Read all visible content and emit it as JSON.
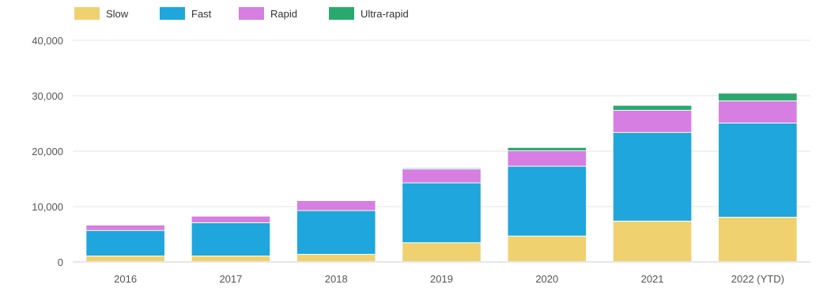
{
  "chart_data": {
    "type": "bar",
    "stacked": true,
    "categories": [
      "2016",
      "2017",
      "2018",
      "2019",
      "2020",
      "2021",
      "2022 (YTD)"
    ],
    "series": [
      {
        "name": "Slow",
        "color": "#f0d170",
        "values": [
          1000,
          1000,
          1300,
          3400,
          4600,
          7300,
          8000
        ]
      },
      {
        "name": "Fast",
        "color": "#1fa6dc",
        "values": [
          4600,
          6000,
          7900,
          10800,
          12600,
          16000,
          17000
        ]
      },
      {
        "name": "Rapid",
        "color": "#d67ee2",
        "values": [
          1000,
          1200,
          1800,
          2500,
          2800,
          4000,
          4000
        ]
      },
      {
        "name": "Ultra-rapid",
        "color": "#2aa96e",
        "values": [
          0,
          0,
          0,
          200,
          600,
          900,
          1400
        ]
      }
    ],
    "yticks": [
      "0",
      "10,000",
      "20,000",
      "30,000",
      "40,000"
    ],
    "ylim": [
      0,
      40000
    ],
    "grid": true,
    "legend_position": "top-left",
    "title": "",
    "xlabel": "",
    "ylabel": ""
  }
}
